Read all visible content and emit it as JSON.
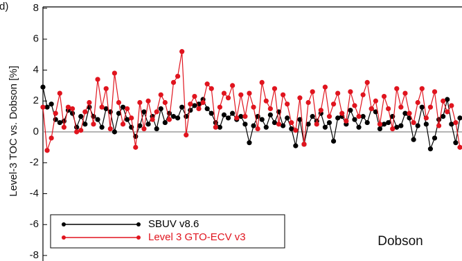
{
  "chart_data": {
    "type": "line",
    "panel_label": "(d)",
    "ylabel": "Level-3 TOC vs. Dobson [%]",
    "annotation": "Dobson",
    "ylim": [
      -8,
      8
    ],
    "yticks": [
      -8,
      -6,
      -4,
      -2,
      0,
      2,
      4,
      6,
      8
    ],
    "xlim": [
      0,
      99
    ],
    "legend": "lower left",
    "x": [
      0,
      1,
      2,
      3,
      4,
      5,
      6,
      7,
      8,
      9,
      10,
      11,
      12,
      13,
      14,
      15,
      16,
      17,
      18,
      19,
      20,
      21,
      22,
      23,
      24,
      25,
      26,
      27,
      28,
      29,
      30,
      31,
      32,
      33,
      34,
      35,
      36,
      37,
      38,
      39,
      40,
      41,
      42,
      43,
      44,
      45,
      46,
      47,
      48,
      49,
      50,
      51,
      52,
      53,
      54,
      55,
      56,
      57,
      58,
      59,
      60,
      61,
      62,
      63,
      64,
      65,
      66,
      67,
      68,
      69,
      70,
      71,
      72,
      73,
      74,
      75,
      76,
      77,
      78,
      79,
      80,
      81,
      82,
      83,
      84,
      85,
      86,
      87,
      88,
      89,
      90,
      91,
      92,
      93,
      94,
      95,
      96,
      97,
      98,
      99
    ],
    "series": [
      {
        "name": "SBUV v8.6",
        "color": "#000000",
        "values": [
          2.9,
          1.6,
          1.8,
          0.8,
          0.6,
          0.7,
          1.4,
          1.2,
          0.3,
          1.0,
          0.5,
          1.6,
          1.0,
          0.8,
          0.3,
          1.5,
          1.3,
          0.0,
          1.2,
          1.6,
          0.8,
          0.3,
          -0.3,
          0.4,
          1.3,
          0.5,
          1.0,
          0.2,
          1.5,
          0.6,
          1.2,
          1.0,
          0.9,
          1.6,
          1.0,
          1.4,
          1.7,
          1.8,
          2.1,
          1.5,
          1.2,
          0.6,
          0.3,
          1.1,
          0.9,
          1.2,
          0.8,
          1.0,
          0.5,
          -0.7,
          0.4,
          1.0,
          0.8,
          0.3,
          1.1,
          0.6,
          1.3,
          0.4,
          0.9,
          0.2,
          -0.9,
          0.8,
          -0.8,
          0.5,
          1.0,
          0.7,
          1.2,
          0.3,
          0.6,
          -0.6,
          0.9,
          1.0,
          0.5,
          1.4,
          0.8,
          0.3,
          1.0,
          0.6,
          1.5,
          1.3,
          0.2,
          0.5,
          0.6,
          1.0,
          0.3,
          0.4,
          1.2,
          0.9,
          -0.5,
          0.4,
          1.6,
          0.5,
          -1.1,
          -0.4,
          0.8,
          1.0,
          2.1,
          0.5,
          -0.7,
          0.9
        ]
      },
      {
        "name": "Level 3 GTO-ECV v3",
        "color": "#e0141e",
        "values": [
          1.6,
          -1.2,
          -0.4,
          1.2,
          2.5,
          0.3,
          1.6,
          1.5,
          0.0,
          0.1,
          1.3,
          1.9,
          0.5,
          3.4,
          1.6,
          2.8,
          0.2,
          3.8,
          1.9,
          0.5,
          1.5,
          0.9,
          -1.0,
          1.9,
          0.2,
          2.0,
          0.8,
          1.3,
          2.4,
          1.9,
          0.8,
          3.2,
          3.6,
          5.2,
          -0.2,
          1.8,
          2.3,
          1.5,
          1.9,
          3.1,
          2.8,
          0.3,
          1.6,
          2.5,
          2.2,
          3.0,
          0.9,
          2.4,
          1.0,
          2.5,
          1.6,
          0.2,
          3.2,
          2.0,
          1.5,
          2.8,
          0.5,
          2.4,
          1.8,
          0.6,
          0.1,
          2.2,
          -0.8,
          1.9,
          2.6,
          0.5,
          1.4,
          2.9,
          1.0,
          1.8,
          2.5,
          1.2,
          0.7,
          2.6,
          1.7,
          1.0,
          2.4,
          3.2,
          1.5,
          2.0,
          0.5,
          2.3,
          1.5,
          0.2,
          2.8,
          1.6,
          2.5,
          1.2,
          0.6,
          1.9,
          2.8,
          0.9,
          1.6,
          2.6,
          0.4,
          2.0,
          1.3,
          1.7,
          0.6,
          -1.0
        ]
      }
    ]
  }
}
